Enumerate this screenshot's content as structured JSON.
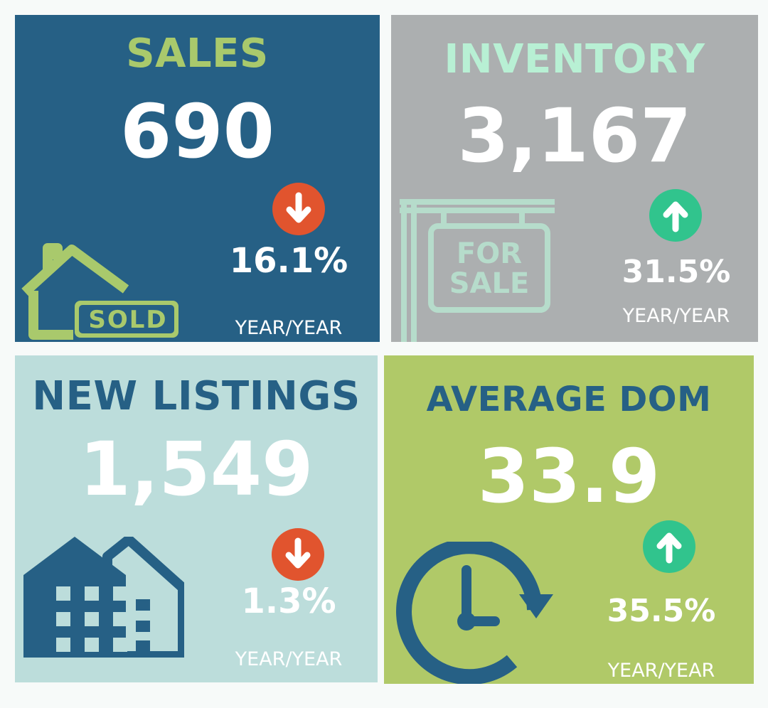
{
  "tiles": {
    "sales": {
      "title": "SALES",
      "value": "690",
      "change": "16.1%",
      "period": "YEAR/YEAR",
      "direction": "down",
      "title_color": "#a9c96c",
      "icon": "house-sold-icon",
      "icon_label": "SOLD"
    },
    "inventory": {
      "title": "INVENTORY",
      "value": "3,167",
      "change": "31.5%",
      "period": "YEAR/YEAR",
      "direction": "up",
      "title_color": "#b8f0d4",
      "icon": "for-sale-sign-icon",
      "icon_label_1": "FOR",
      "icon_label_2": "SALE"
    },
    "new_listings": {
      "title": "NEW LISTINGS",
      "value": "1,549",
      "change": "1.3%",
      "period": "YEAR/YEAR",
      "direction": "down",
      "title_color": "#266085",
      "icon": "buildings-icon"
    },
    "average_dom": {
      "title": "AVERAGE DOM",
      "value": "33.9",
      "change": "35.5%",
      "period": "YEAR/YEAR",
      "direction": "up",
      "title_color": "#266085",
      "icon": "clock-refresh-icon"
    }
  },
  "colors": {
    "down": "#e1542e",
    "up": "#31c48d",
    "blue": "#266085",
    "green": "#a9c96c",
    "mint": "#b6dccb"
  }
}
